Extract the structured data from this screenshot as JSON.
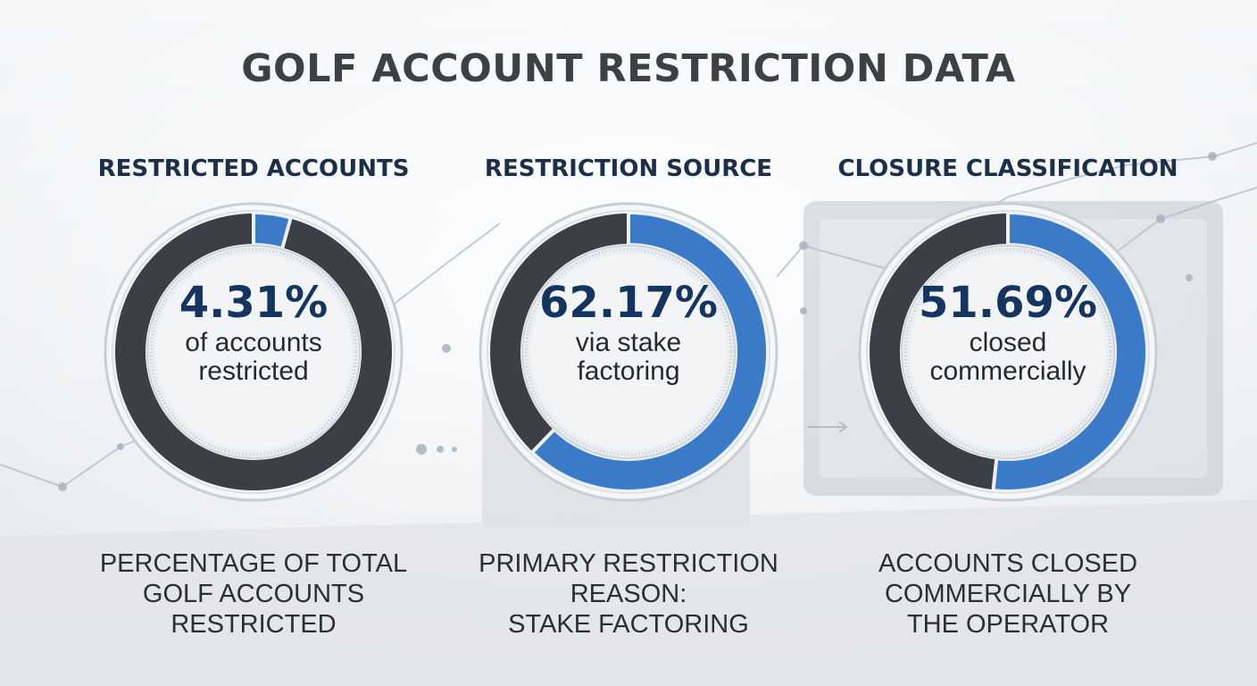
{
  "title": "GOLF ACCOUNT RESTRICTION DATA",
  "colors": {
    "accent": "#3a7ac7",
    "track": "#3b4046",
    "heading": "#1c2f49",
    "value": "#14355f"
  },
  "chart_data": [
    {
      "type": "pie",
      "title": "RESTRICTED ACCOUNTS",
      "value": 4.31,
      "display_value": "4.31%",
      "caption": "of accounts restricted",
      "description": "PERCENTAGE OF TOTAL\nGOLF ACCOUNTS\nRESTRICTED"
    },
    {
      "type": "pie",
      "title": "RESTRICTION SOURCE",
      "value": 62.17,
      "display_value": "62.17%",
      "caption": "via stake factoring",
      "description": "PRIMARY RESTRICTION\nREASON:\nSTAKE FACTORING"
    },
    {
      "type": "pie",
      "title": "CLOSURE CLASSIFICATION",
      "value": 51.69,
      "display_value": "51.69%",
      "caption": "closed commercially",
      "description": "ACCOUNTS CLOSED\nCOMMERCIALLY BY\nTHE OPERATOR"
    }
  ]
}
